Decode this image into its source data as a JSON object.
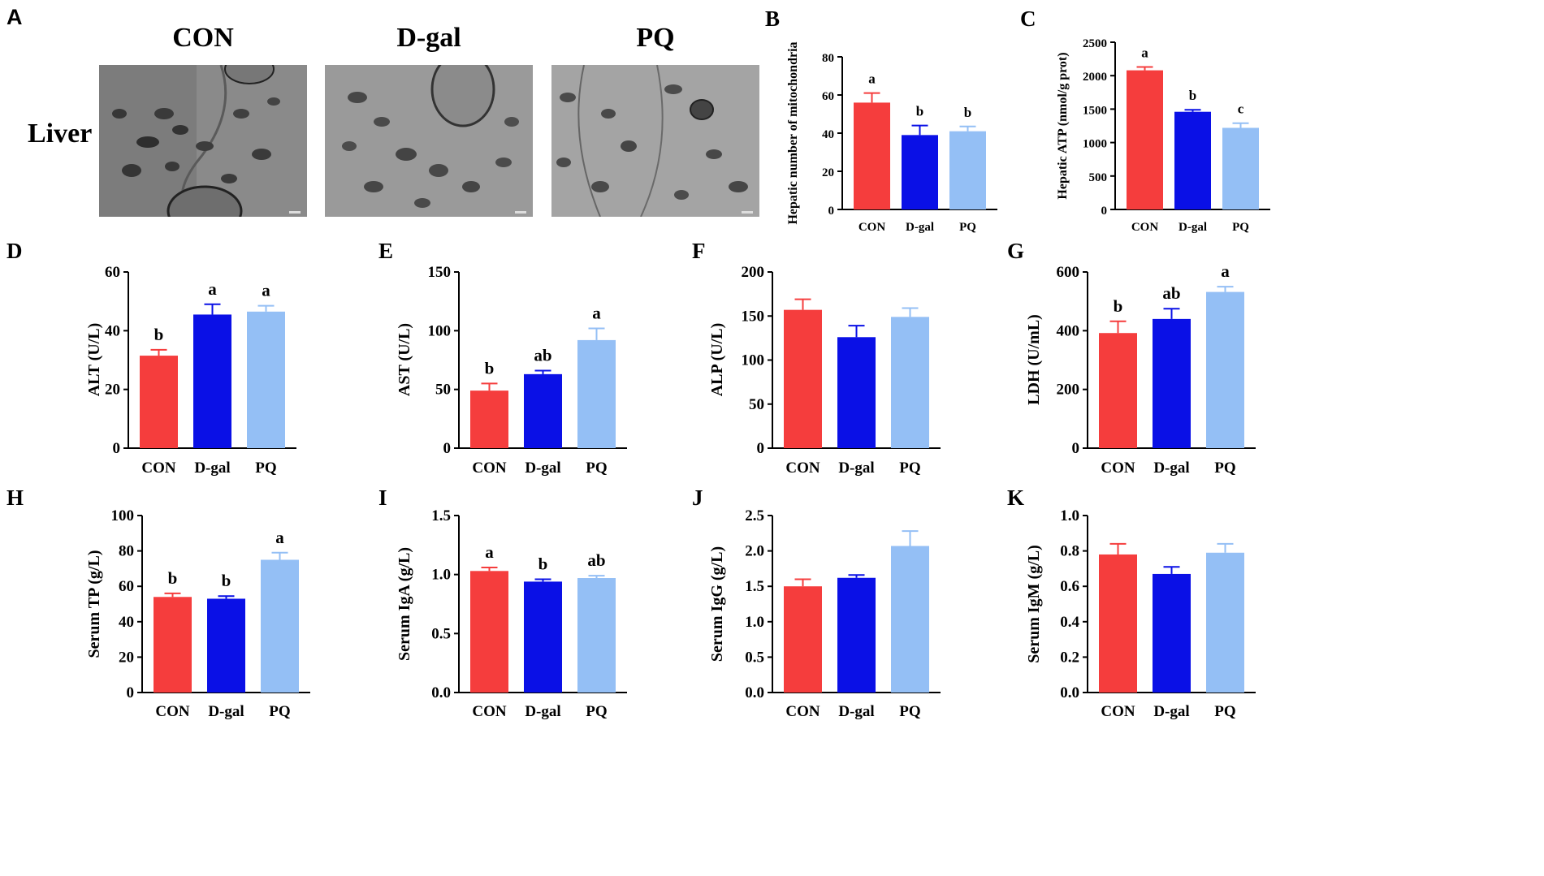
{
  "panel_a": {
    "letter": "A",
    "row_label": "Liver",
    "images": [
      {
        "title": "CON",
        "alt": "TEM micrograph of liver tissue, CON group"
      },
      {
        "title": "D-gal",
        "alt": "TEM micrograph of liver tissue, D-gal group"
      },
      {
        "title": "PQ",
        "alt": "TEM micrograph of liver tissue, PQ group"
      }
    ]
  },
  "colors": {
    "CON": "#f53d3d",
    "D-gal": "#0a10e6",
    "PQ": "#94bff5"
  },
  "chart_data": [
    {
      "id": "B",
      "type": "bar",
      "title": "",
      "xlabel": "",
      "ylabel": "Hepatic number of mitochondria",
      "categories": [
        "CON",
        "D-gal",
        "PQ"
      ],
      "values": [
        56,
        39,
        41
      ],
      "errors": [
        5,
        5,
        2.5
      ],
      "labels": [
        "a",
        "b",
        "b"
      ],
      "ylim": [
        0,
        80
      ],
      "ticks": [
        0,
        20,
        40,
        60,
        80
      ],
      "tick_labels": [
        "0",
        "20",
        "40",
        "60",
        "80"
      ]
    },
    {
      "id": "C",
      "type": "bar",
      "title": "",
      "xlabel": "",
      "ylabel": "Hepatic ATP (nmol/g prot)",
      "categories": [
        "CON",
        "D-gal",
        "PQ"
      ],
      "values": [
        2080,
        1460,
        1220
      ],
      "errors": [
        50,
        30,
        70
      ],
      "labels": [
        "a",
        "b",
        "c"
      ],
      "ylim": [
        0,
        2500
      ],
      "ticks": [
        0,
        500,
        1000,
        1500,
        2000,
        2500
      ],
      "tick_labels": [
        "0",
        "500",
        "1000",
        "1500",
        "2000",
        "2500"
      ]
    },
    {
      "id": "D",
      "type": "bar",
      "title": "",
      "xlabel": "",
      "ylabel": "ALT (U/L)",
      "categories": [
        "CON",
        "D-gal",
        "PQ"
      ],
      "values": [
        31.5,
        45.5,
        46.5
      ],
      "errors": [
        2,
        3.5,
        2
      ],
      "labels": [
        "b",
        "a",
        "a"
      ],
      "ylim": [
        0,
        60
      ],
      "ticks": [
        0,
        20,
        40,
        60
      ],
      "tick_labels": [
        "0",
        "20",
        "40",
        "60"
      ]
    },
    {
      "id": "E",
      "type": "bar",
      "title": "",
      "xlabel": "",
      "ylabel": "AST (U/L)",
      "categories": [
        "CON",
        "D-gal",
        "PQ"
      ],
      "values": [
        49,
        63,
        92
      ],
      "errors": [
        6,
        3,
        10
      ],
      "labels": [
        "b",
        "ab",
        "a"
      ],
      "ylim": [
        0,
        150
      ],
      "ticks": [
        0,
        50,
        100,
        150
      ],
      "tick_labels": [
        "0",
        "50",
        "100",
        "150"
      ]
    },
    {
      "id": "F",
      "type": "bar",
      "title": "",
      "xlabel": "",
      "ylabel": "ALP (U/L)",
      "categories": [
        "CON",
        "D-gal",
        "PQ"
      ],
      "values": [
        157,
        126,
        149
      ],
      "errors": [
        12,
        13,
        10
      ],
      "labels": [
        "",
        "",
        ""
      ],
      "ylim": [
        0,
        200
      ],
      "ticks": [
        0,
        50,
        100,
        150,
        200
      ],
      "tick_labels": [
        "0",
        "50",
        "100",
        "150",
        "200"
      ]
    },
    {
      "id": "G",
      "type": "bar",
      "title": "",
      "xlabel": "",
      "ylabel": "LDH (U/mL)",
      "categories": [
        "CON",
        "D-gal",
        "PQ"
      ],
      "values": [
        392,
        440,
        532
      ],
      "errors": [
        40,
        35,
        18
      ],
      "labels": [
        "b",
        "ab",
        "a"
      ],
      "ylim": [
        0,
        600
      ],
      "ticks": [
        0,
        200,
        400,
        600
      ],
      "tick_labels": [
        "0",
        "200",
        "400",
        "600"
      ]
    },
    {
      "id": "H",
      "type": "bar",
      "title": "",
      "xlabel": "",
      "ylabel": "Serum TP (g/L)",
      "categories": [
        "CON",
        "D-gal",
        "PQ"
      ],
      "values": [
        54,
        53,
        75
      ],
      "errors": [
        2,
        1.5,
        4
      ],
      "labels": [
        "b",
        "b",
        "a"
      ],
      "ylim": [
        0,
        100
      ],
      "ticks": [
        0,
        20,
        40,
        60,
        80,
        100
      ],
      "tick_labels": [
        "0",
        "20",
        "40",
        "60",
        "80",
        "100"
      ]
    },
    {
      "id": "I",
      "type": "bar",
      "title": "",
      "xlabel": "",
      "ylabel": "Serum IgA (g/L)",
      "categories": [
        "CON",
        "D-gal",
        "PQ"
      ],
      "values": [
        1.03,
        0.94,
        0.97
      ],
      "errors": [
        0.03,
        0.02,
        0.02
      ],
      "labels": [
        "a",
        "b",
        "ab"
      ],
      "ylim": [
        0,
        1.5
      ],
      "ticks": [
        0,
        0.5,
        1.0,
        1.5
      ],
      "tick_labels": [
        "0.0",
        "0.5",
        "1.0",
        "1.5"
      ]
    },
    {
      "id": "J",
      "type": "bar",
      "title": "",
      "xlabel": "",
      "ylabel": "Serum IgG (g/L)",
      "categories": [
        "CON",
        "D-gal",
        "PQ"
      ],
      "values": [
        1.5,
        1.62,
        2.07
      ],
      "errors": [
        0.1,
        0.04,
        0.21
      ],
      "labels": [
        "",
        "",
        ""
      ],
      "ylim": [
        0,
        2.5
      ],
      "ticks": [
        0,
        0.5,
        1.0,
        1.5,
        2.0,
        2.5
      ],
      "tick_labels": [
        "0.0",
        "0.5",
        "1.0",
        "1.5",
        "2.0",
        "2.5"
      ]
    },
    {
      "id": "K",
      "type": "bar",
      "title": "",
      "xlabel": "",
      "ylabel": "Serum IgM (g/L)",
      "categories": [
        "CON",
        "D-gal",
        "PQ"
      ],
      "values": [
        0.78,
        0.67,
        0.79
      ],
      "errors": [
        0.06,
        0.04,
        0.05
      ],
      "labels": [
        "",
        "",
        ""
      ],
      "ylim": [
        0,
        1.0
      ],
      "ticks": [
        0,
        0.2,
        0.4,
        0.6,
        0.8,
        1.0
      ],
      "tick_labels": [
        "0.0",
        "0.2",
        "0.4",
        "0.6",
        "0.8",
        "1.0"
      ]
    }
  ]
}
